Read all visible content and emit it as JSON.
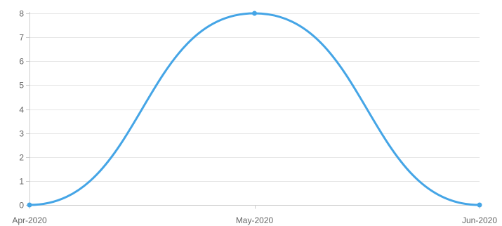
{
  "chart_data": {
    "type": "line",
    "categories": [
      "Apr-2020",
      "May-2020",
      "Jun-2020"
    ],
    "series": [
      {
        "values": [
          0,
          8,
          0
        ],
        "color": "#45a5e6",
        "smooth": true,
        "markers": true
      }
    ],
    "title": "",
    "xlabel": "",
    "ylabel": "",
    "ylim": [
      0,
      8
    ],
    "yticks": [
      0,
      1,
      2,
      3,
      4,
      5,
      6,
      7,
      8
    ],
    "grid": true,
    "legend": "none"
  },
  "colors": {
    "line": "#45a5e6",
    "grid": "#e6e6e6",
    "axis": "#cccccc",
    "tick_text": "#666666"
  }
}
